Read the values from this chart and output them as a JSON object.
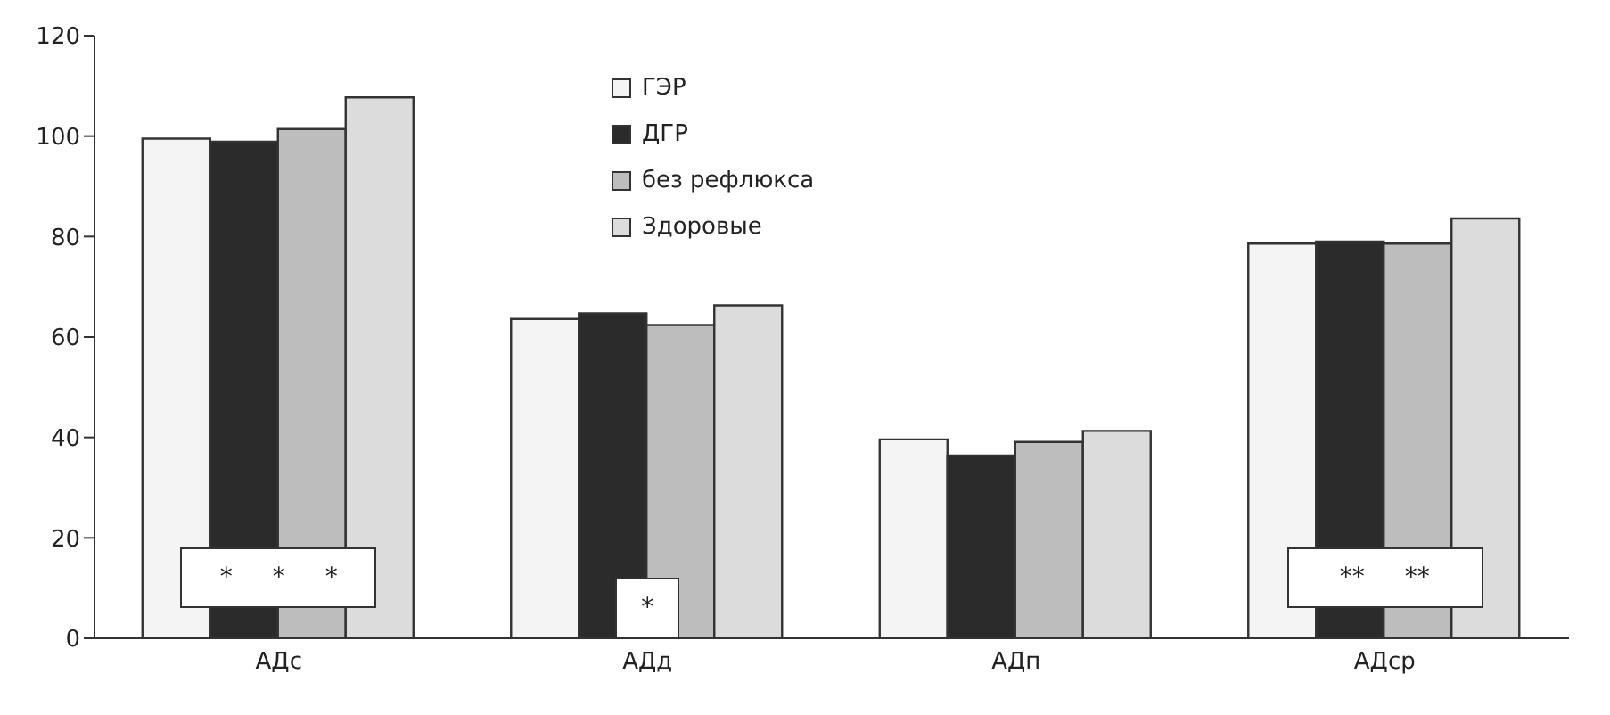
{
  "chart_data": {
    "type": "bar",
    "categories": [
      "АДс",
      "АДд",
      "АДп",
      "АДср"
    ],
    "series": [
      {
        "name": "ГЭР",
        "color": "#f4f4f4",
        "values": [
          99.5,
          63.6,
          39.6,
          78.6
        ]
      },
      {
        "name": "ДГР",
        "color": "#2b2b2b",
        "values": [
          98.9,
          64.7,
          36.4,
          79.0
        ]
      },
      {
        "name": "без рефлюкса",
        "color": "#bdbdbd",
        "values": [
          101.4,
          62.4,
          39.1,
          78.6
        ]
      },
      {
        "name": "Здоровые",
        "color": "#dcdcdc",
        "values": [
          107.7,
          66.3,
          41.3,
          83.6
        ]
      }
    ],
    "ylim": [
      0,
      120
    ],
    "yticks": [
      0,
      20,
      40,
      60,
      80,
      100,
      120
    ],
    "grid": false,
    "legend": "top",
    "annotations": [
      {
        "text": "* * *",
        "x": "АДс",
        "y": 12
      },
      {
        "text": "*",
        "x": "АДд",
        "y": 6
      },
      {
        "text": "** **",
        "x": "АДср",
        "y": 12
      }
    ]
  }
}
